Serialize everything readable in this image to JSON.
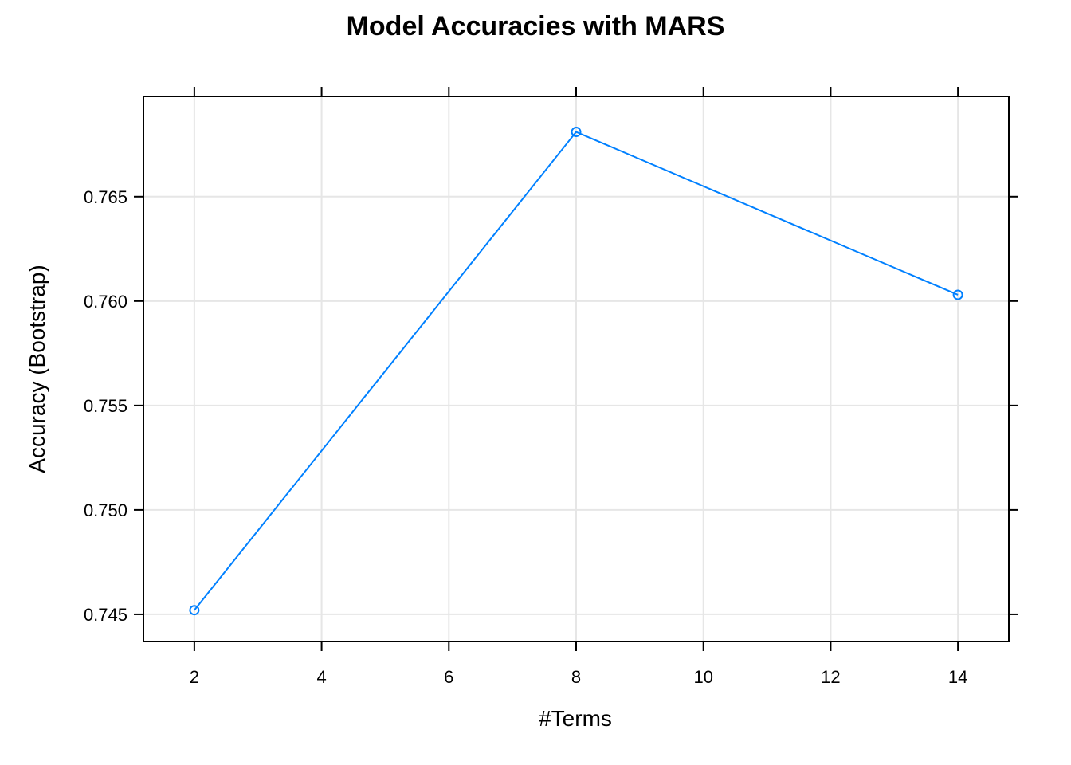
{
  "chart_data": {
    "type": "line",
    "title": "Model Accuracies with MARS",
    "xlabel": "#Terms",
    "ylabel": "Accuracy (Bootstrap)",
    "x": [
      2,
      8,
      14
    ],
    "series": [
      {
        "values": [
          0.7452,
          0.7681,
          0.7603
        ]
      }
    ],
    "xlim": [
      1.2,
      14.8
    ],
    "ylim": [
      0.7437,
      0.7698
    ],
    "xticks": [
      2,
      4,
      6,
      8,
      10,
      12,
      14
    ],
    "yticks": [
      0.745,
      0.75,
      0.755,
      0.76,
      0.765
    ],
    "xtick_labels": [
      "2",
      "4",
      "6",
      "8",
      "10",
      "12",
      "14"
    ],
    "ytick_labels": [
      "0.745",
      "0.750",
      "0.755",
      "0.760",
      "0.765"
    ],
    "grid": true,
    "line_color": "#0080ff",
    "marker": "open-circle"
  }
}
